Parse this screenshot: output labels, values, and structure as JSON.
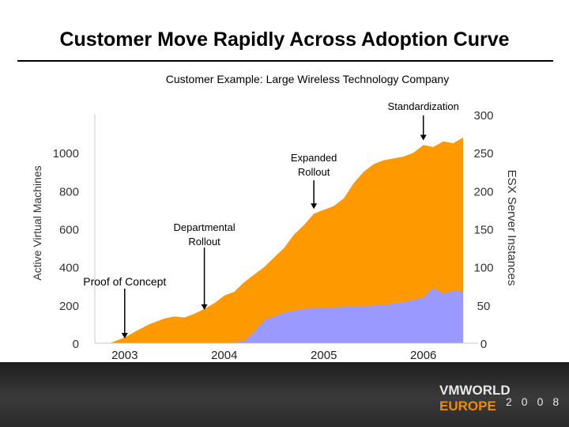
{
  "slide": {
    "title": "Customer Move Rapidly Across Adoption Curve",
    "subtitle": "Customer Example: Large Wireless Technology Company"
  },
  "footer": {
    "brand_primary": "VMWORLD",
    "brand_secondary": "EUROPE",
    "brand_year": "2008"
  },
  "chart_data": {
    "type": "area",
    "xlabel": "",
    "ylabel": "Active Virtual Machines",
    "y2label": "ESX Server Instances",
    "x_ticks": [
      "2003",
      "2004",
      "2005",
      "2006"
    ],
    "y_ticks": [
      0,
      200,
      400,
      600,
      800,
      1000
    ],
    "y2_ticks": [
      0,
      50,
      100,
      150,
      200,
      250,
      300
    ],
    "ylim": [
      0,
      1200
    ],
    "y2lim": [
      0,
      300
    ],
    "xlim": [
      2002.7,
      2006.55
    ],
    "legend": "none",
    "grid": false,
    "colors": {
      "vm_area": "#ff9900",
      "esx_area": "#9999ff"
    },
    "series": [
      {
        "axis": "left",
        "x": [
          2002.85,
          2003.0,
          2003.1,
          2003.25,
          2003.4,
          2003.5,
          2003.6,
          2003.7,
          2003.8,
          2003.9,
          2004.0,
          2004.1,
          2004.2,
          2004.3,
          2004.4,
          2004.5,
          2004.6,
          2004.7,
          2004.8,
          2004.9,
          2005.0,
          2005.1,
          2005.2,
          2005.3,
          2005.4,
          2005.5,
          2005.6,
          2005.7,
          2005.8,
          2005.9,
          2006.0,
          2006.1,
          2006.2,
          2006.3,
          2006.4
        ],
        "values": [
          0,
          30,
          60,
          100,
          130,
          140,
          135,
          155,
          180,
          210,
          250,
          270,
          320,
          360,
          400,
          450,
          500,
          570,
          620,
          680,
          700,
          720,
          760,
          840,
          900,
          940,
          960,
          970,
          980,
          1000,
          1040,
          1030,
          1060,
          1050,
          1080
        ]
      },
      {
        "axis": "left",
        "x": [
          2002.85,
          2003.0,
          2003.5,
          2004.0,
          2004.2,
          2004.3,
          2004.4,
          2004.6,
          2004.8,
          2005.0,
          2005.2,
          2005.4,
          2005.6,
          2005.8,
          2006.0,
          2006.1,
          2006.2,
          2006.3,
          2006.4
        ],
        "values": [
          0,
          0,
          0,
          0,
          10,
          60,
          120,
          160,
          180,
          185,
          190,
          195,
          200,
          215,
          240,
          290,
          260,
          275,
          270
        ]
      }
    ],
    "annotations": [
      {
        "text": "Proof of Concept",
        "x": 2003.0,
        "arrow_to_y": 0
      },
      {
        "text": "Departmental Rollout",
        "x": 2003.8,
        "arrow_to_y": 150
      },
      {
        "text": "Expanded Rollout",
        "x": 2004.9,
        "arrow_to_y": 680
      },
      {
        "text": "Standardization",
        "x": 2006.0,
        "arrow_to_y": 1040
      }
    ]
  }
}
